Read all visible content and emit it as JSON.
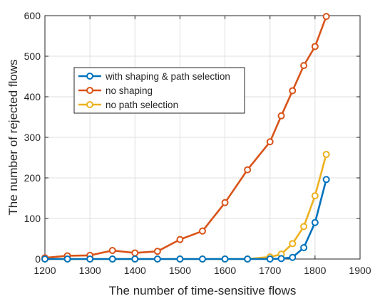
{
  "chart_data": {
    "type": "line",
    "title": "",
    "xlabel": "The number of time-sensitive flows",
    "ylabel": "The number of rejected flows",
    "xlim": [
      1200,
      1900
    ],
    "ylim": [
      0,
      600
    ],
    "xticks": [
      1200,
      1300,
      1400,
      1500,
      1600,
      1700,
      1800,
      1900
    ],
    "yticks": [
      0,
      100,
      200,
      300,
      400,
      500,
      600
    ],
    "grid": true,
    "legend_position": "upper-left",
    "series": [
      {
        "name": "with shaping & path selection",
        "color": "#0072BD",
        "x": [
          1200,
          1250,
          1300,
          1350,
          1400,
          1450,
          1500,
          1550,
          1600,
          1650,
          1700,
          1725,
          1750,
          1775,
          1800,
          1825
        ],
        "y": [
          0,
          0,
          0,
          0,
          0,
          0,
          0,
          0,
          0,
          0,
          0,
          1,
          4,
          28,
          90,
          196
        ]
      },
      {
        "name": "no shaping",
        "color": "#D95319",
        "x": [
          1200,
          1250,
          1300,
          1350,
          1400,
          1450,
          1500,
          1550,
          1600,
          1650,
          1700,
          1725,
          1750,
          1775,
          1800,
          1825
        ],
        "y": [
          3,
          8,
          9,
          21,
          15,
          19,
          48,
          69,
          139,
          220,
          289,
          353,
          415,
          477,
          524,
          598
        ]
      },
      {
        "name": "no path selection",
        "color": "#EDB120",
        "x": [
          1200,
          1250,
          1300,
          1350,
          1400,
          1450,
          1500,
          1550,
          1600,
          1650,
          1700,
          1725,
          1750,
          1775,
          1800,
          1825
        ],
        "y": [
          0,
          0,
          0,
          0,
          0,
          0,
          0,
          0,
          0,
          0,
          5,
          12,
          38,
          80,
          156,
          258
        ]
      }
    ]
  }
}
